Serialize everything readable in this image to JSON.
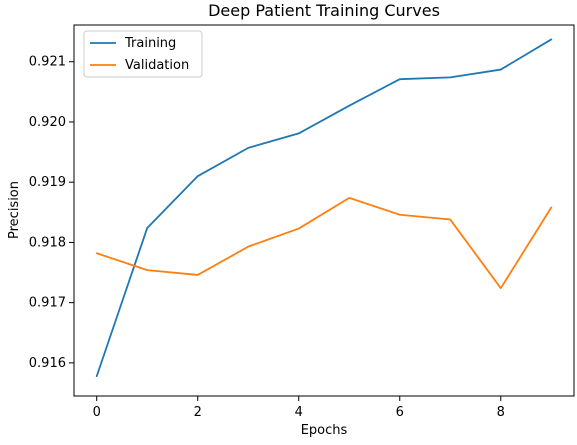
{
  "chart_data": {
    "type": "line",
    "title": "Deep Patient Training Curves",
    "xlabel": "Epochs",
    "ylabel": "Precision",
    "x": [
      0,
      1,
      2,
      3,
      4,
      5,
      6,
      7,
      8,
      9
    ],
    "xlim": [
      -0.45,
      9.45
    ],
    "ylim": [
      0.91545,
      0.92161
    ],
    "xticks": [
      0,
      2,
      4,
      6,
      8
    ],
    "xtick_labels": [
      "0",
      "2",
      "4",
      "6",
      "8"
    ],
    "yticks": [
      0.916,
      0.917,
      0.918,
      0.919,
      0.92,
      0.921
    ],
    "ytick_labels": [
      "0.916",
      "0.917",
      "0.918",
      "0.919",
      "0.920",
      "0.921"
    ],
    "grid": false,
    "legend_position": "top-left",
    "series": [
      {
        "name": "Training",
        "color": "#1f77b4",
        "values": [
          0.91578,
          0.91824,
          0.9191,
          0.91957,
          0.91981,
          0.92027,
          0.92071,
          0.92074,
          0.92087,
          0.92137
        ]
      },
      {
        "name": "Validation",
        "color": "#ff7f0e",
        "values": [
          0.91782,
          0.91754,
          0.91746,
          0.91793,
          0.91823,
          0.91874,
          0.91846,
          0.91838,
          0.91724,
          0.91858
        ]
      }
    ]
  }
}
